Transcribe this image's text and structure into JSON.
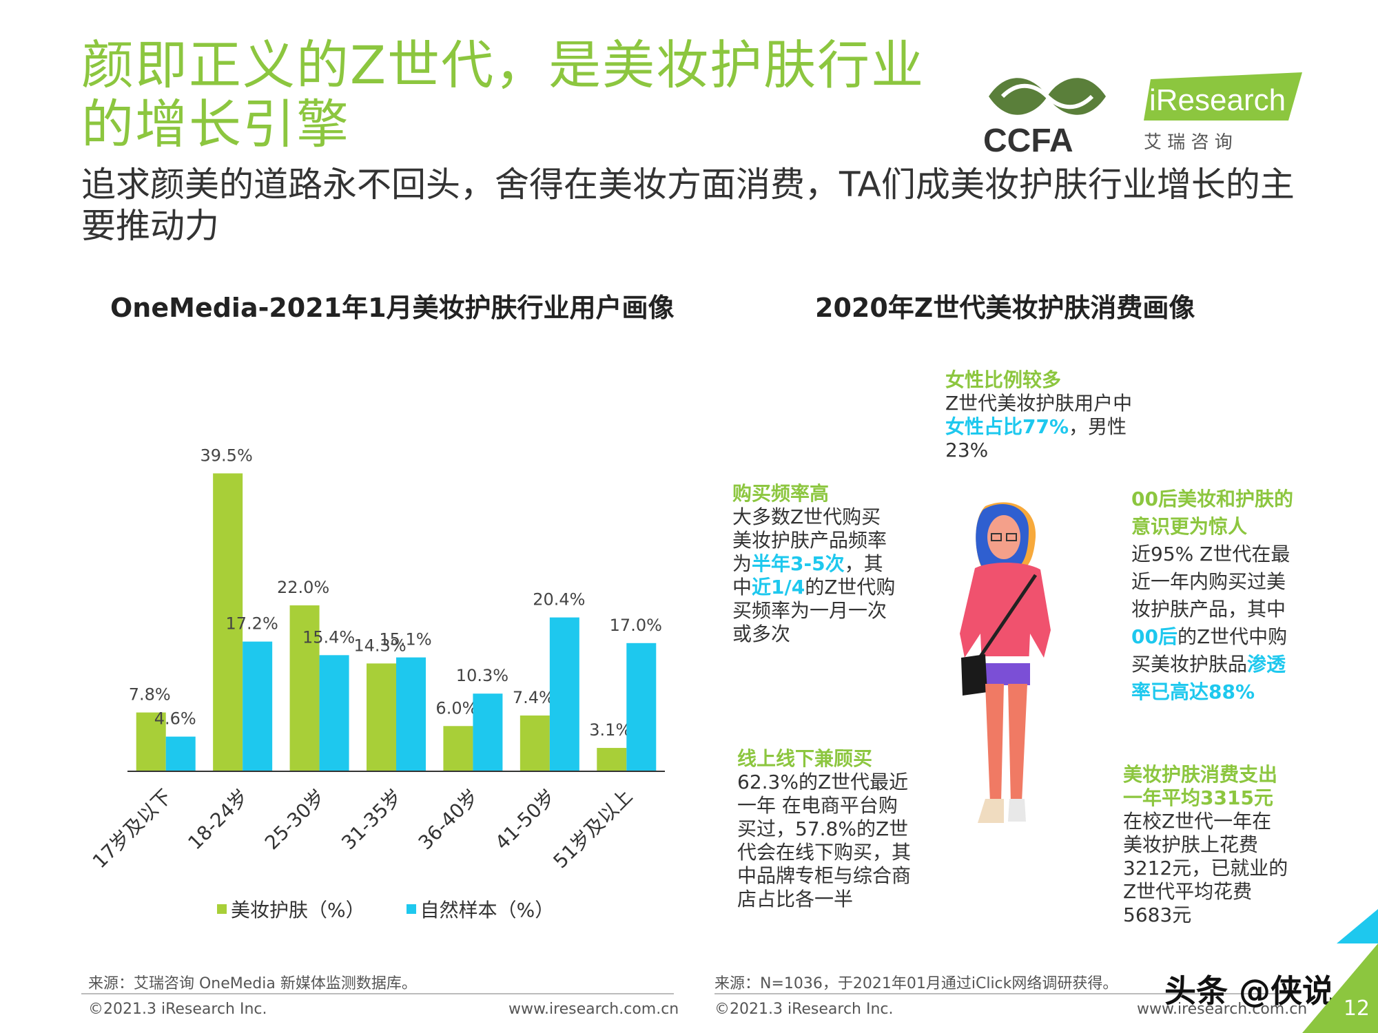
{
  "header": {
    "title": "颜即正义的Z世代，是美妆护肤行业的增长引擎",
    "subtitle": "追求颜美的道路永不回头，舍得在美妆方面消费，TA们成美妆护肤行业增长的主要推动力"
  },
  "logos": {
    "ccfa_text": "CCFA",
    "iresearch_text": "iResearch",
    "iresearch_cn": "艾 瑞 咨 询"
  },
  "left": {
    "chart_title": "OneMedia-2021年1月美妆护肤行业用户画像",
    "source": "来源：艾瑞咨询 OneMedia 新媒体监测数据库。",
    "copyright": "©2021.3 iResearch Inc.",
    "website": "www.iresearch.com.cn"
  },
  "right": {
    "chart_title": "2020年Z世代美妆护肤消费画像",
    "notes": {
      "female": {
        "head": "女性比例较多",
        "line1": "Z世代美妆护肤用户中",
        "hl": "女性占比77%",
        "line2": "，男性",
        "line3": "23%"
      },
      "frequency": {
        "head": "购买频率高",
        "l1": "大多数Z世代购买",
        "l2": "美妆护肤产品频率",
        "l3a": "为",
        "l3hl": "半年3-5次",
        "l3b": "，其",
        "l4a": "中",
        "l4hl": "近1/4",
        "l4b": "的Z世代购",
        "l5": "买频率为一月一次",
        "l6": "或多次"
      },
      "gen00": {
        "head1": "00后美妆和护肤的",
        "head2": "意识更为惊人",
        "l1": "近95% Z世代在最",
        "l2": "近一年内购买过美",
        "l3": "妆护肤产品，其中",
        "l4hl": "00后",
        "l4b": "的Z世代中购",
        "l5a": "买美妆护肤品",
        "l5hl": "渗透",
        "l6hl": "率已高达88%"
      },
      "channels": {
        "head": "线上线下兼顾买",
        "l1": "62.3%的Z世代最近",
        "l2": "一年 在电商平台购",
        "l3": "买过，57.8%的Z世",
        "l4": "代会在线下购买，其",
        "l5": "中品牌专柜与综合商",
        "l6": "店占比各一半"
      },
      "spend": {
        "head1": "美妆护肤消费支出",
        "head2": "一年平均3315元",
        "l1": "在校Z世代一年在",
        "l2": "美妆护肤上花费",
        "l3": "3212元，已就业的",
        "l4": "Z世代平均花费",
        "l5": "5683元"
      }
    },
    "source": "来源：N=1036，于2021年01月通过iClick网络调研获得。",
    "copyright": "©2021.3 iResearch Inc.",
    "website": "www.iresearch.com.cn"
  },
  "watermark": "头条 @侠说",
  "page_number": "12",
  "colors": {
    "green": "#8cc63f",
    "bar_green": "#a8cf38",
    "cyan": "#1ec8ee"
  },
  "chart_data": {
    "type": "bar",
    "title": "OneMedia-2021年1月美妆护肤行业用户画像",
    "categories": [
      "17岁及以下",
      "18-24岁",
      "25-30岁",
      "31-35岁",
      "36-40岁",
      "41-50岁",
      "51岁及以上"
    ],
    "series": [
      {
        "name": "美妆护肤（%）",
        "values": [
          7.8,
          39.5,
          22.0,
          14.3,
          6.0,
          7.4,
          3.1
        ],
        "labels": [
          "7.8%",
          "39.5%",
          "22.0%",
          "14.3%",
          "6.0%",
          "7.4%",
          "3.1%"
        ],
        "color": "#a8cf38"
      },
      {
        "name": "自然样本（%）",
        "values": [
          4.6,
          17.2,
          15.4,
          15.1,
          10.3,
          20.4,
          17.0
        ],
        "labels": [
          "4.6%",
          "17.2%",
          "15.4%",
          "15.1%",
          "10.3%",
          "20.4%",
          "17.0%"
        ],
        "color": "#1ec8ee"
      }
    ],
    "ylim": [
      0,
      42
    ],
    "grid": false,
    "legend": "bottom"
  }
}
